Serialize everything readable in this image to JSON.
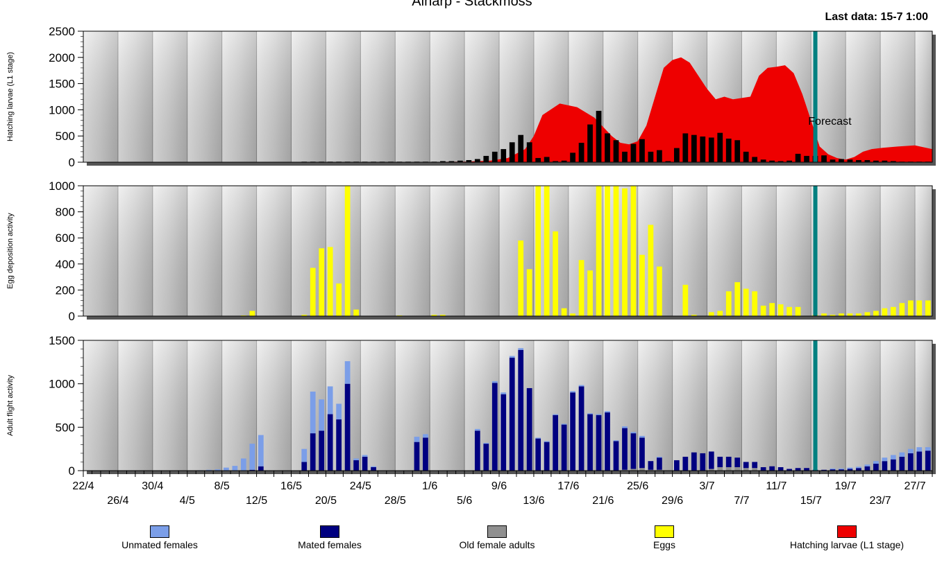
{
  "title": "Alnarp - Stackmoss",
  "last_data": "Last data: 15-7 1:00",
  "forecast_label": "Forecast",
  "colors": {
    "unmated": "#7b9ee8",
    "mated": "#000080",
    "old": "#909090",
    "eggs": "#ffff00",
    "larvae": "#ee0000",
    "forecast_line": "#008080",
    "larvae_bars": "#000000"
  },
  "legend": [
    {
      "label": "Unmated females",
      "color": "#7b9ee8"
    },
    {
      "label": "Mated females",
      "color": "#000080"
    },
    {
      "label": "Old female adults",
      "color": "#909090"
    },
    {
      "label": "Eggs",
      "color": "#ffff00"
    },
    {
      "label": "Hatching larvae (L1 stage)",
      "color": "#ee0000"
    }
  ],
  "chart_data": [
    {
      "type": "area",
      "panel": "top",
      "ylabel": "Hatching larvae (L1 stage)",
      "ylim": [
        0,
        2500
      ],
      "yticks": [
        0,
        500,
        1000,
        1500,
        2000,
        2500
      ],
      "x_start": "22/4",
      "day_count": 98,
      "forecast_day": 84,
      "series": [
        {
          "name": "Hatching larvae (L1 stage)",
          "kind": "area",
          "x_days": [
            0,
            36,
            40,
            44,
            47,
            49,
            51,
            52,
            53,
            55,
            57,
            59,
            61,
            62,
            63,
            64,
            65,
            67,
            68,
            69,
            70,
            72,
            73,
            74,
            75,
            77,
            78,
            79,
            80,
            81,
            82,
            83,
            84,
            85,
            86,
            87,
            88,
            89,
            90,
            91,
            92,
            94,
            96,
            98
          ],
          "values": [
            0,
            0,
            5,
            10,
            30,
            80,
            250,
            500,
            900,
            1120,
            1050,
            850,
            500,
            370,
            340,
            400,
            700,
            1800,
            1950,
            2000,
            1900,
            1400,
            1200,
            1250,
            1200,
            1250,
            1650,
            1800,
            1820,
            1850,
            1700,
            1300,
            800,
            300,
            150,
            80,
            50,
            100,
            200,
            250,
            270,
            300,
            320,
            250
          ]
        },
        {
          "name": "Hatching larvae daily",
          "kind": "bars",
          "x_days": [
            25,
            26,
            27,
            28,
            29,
            30,
            31,
            32,
            33,
            34,
            35,
            36,
            37,
            38,
            39,
            40,
            41,
            42,
            43,
            44,
            45,
            46,
            47,
            48,
            49,
            50,
            51,
            52,
            53,
            54,
            55,
            56,
            57,
            58,
            59,
            60,
            61,
            62,
            63,
            64,
            65,
            66,
            67,
            68,
            69,
            70,
            71,
            72,
            73,
            74,
            75,
            76,
            77,
            78,
            79,
            80,
            81,
            82,
            83,
            84,
            85,
            86,
            87,
            88,
            89,
            90,
            91,
            92,
            93,
            94,
            95,
            96,
            97
          ],
          "values": [
            10,
            10,
            10,
            10,
            10,
            10,
            10,
            10,
            10,
            10,
            10,
            10,
            10,
            10,
            10,
            10,
            20,
            20,
            30,
            40,
            60,
            120,
            200,
            250,
            380,
            520,
            380,
            80,
            100,
            20,
            30,
            180,
            370,
            720,
            980,
            550,
            420,
            200,
            350,
            440,
            200,
            230,
            20,
            270,
            550,
            520,
            490,
            470,
            560,
            450,
            420,
            200,
            100,
            50,
            30,
            20,
            30,
            160,
            120,
            120,
            130,
            50,
            60,
            50,
            40,
            40,
            30,
            30,
            20,
            10,
            10,
            10,
            10
          ]
        }
      ]
    },
    {
      "type": "bar",
      "panel": "middle",
      "ylabel": "Egg deposition activity",
      "ylim": [
        0,
        1000
      ],
      "yticks": [
        0,
        200,
        400,
        600,
        800,
        1000
      ],
      "series": [
        {
          "name": "Eggs",
          "x_days": [
            18,
            19,
            25,
            26,
            27,
            28,
            29,
            30,
            31,
            36,
            40,
            41,
            50,
            51,
            52,
            53,
            54,
            55,
            56,
            57,
            58,
            59,
            60,
            61,
            62,
            63,
            64,
            65,
            66,
            69,
            70,
            72,
            73,
            74,
            75,
            76,
            77,
            78,
            79,
            80,
            81,
            82,
            84,
            85,
            86,
            87,
            88,
            89,
            90,
            91,
            92,
            93,
            94,
            95,
            96,
            97
          ],
          "values": [
            5,
            40,
            10,
            370,
            520,
            530,
            250,
            1000,
            50,
            5,
            10,
            10,
            580,
            360,
            1000,
            1000,
            650,
            60,
            20,
            430,
            350,
            1000,
            1000,
            1000,
            980,
            1000,
            470,
            700,
            380,
            240,
            10,
            30,
            40,
            190,
            260,
            210,
            190,
            80,
            100,
            90,
            70,
            70,
            10,
            20,
            10,
            20,
            20,
            20,
            30,
            40,
            60,
            70,
            100,
            120,
            120,
            120
          ]
        }
      ]
    },
    {
      "type": "bar",
      "panel": "bottom",
      "ylabel": "Adult flight activity",
      "ylim": [
        0,
        1500
      ],
      "yticks": [
        0,
        500,
        1000,
        1500
      ],
      "stacked": true,
      "series_names": [
        "Mated females",
        "Unmated females",
        "Old female adults"
      ],
      "x_days": [
        13,
        14,
        15,
        16,
        17,
        18,
        19,
        20,
        25,
        26,
        27,
        28,
        29,
        30,
        31,
        32,
        33,
        34,
        38,
        39,
        45,
        46,
        47,
        48,
        49,
        50,
        51,
        52,
        53,
        54,
        55,
        56,
        57,
        58,
        59,
        60,
        61,
        62,
        63,
        64,
        65,
        66,
        68,
        69,
        70,
        71,
        72,
        73,
        74,
        75,
        76,
        77,
        78,
        79,
        80,
        81,
        82,
        83,
        84,
        85,
        86,
        87,
        88,
        89,
        90,
        91,
        92,
        93,
        94,
        95,
        96,
        97
      ],
      "mated": [
        0,
        0,
        0,
        0,
        0,
        0,
        10,
        50,
        100,
        430,
        460,
        650,
        590,
        1000,
        120,
        160,
        40,
        0,
        330,
        380,
        460,
        310,
        1010,
        880,
        1300,
        1390,
        950,
        370,
        330,
        640,
        530,
        900,
        970,
        650,
        640,
        670,
        340,
        480,
        410,
        350,
        100,
        140,
        120,
        160,
        210,
        200,
        200,
        120,
        120,
        110,
        70,
        70,
        40,
        50,
        40,
        20,
        30,
        30,
        10,
        10,
        15,
        15,
        20,
        30,
        50,
        80,
        110,
        130,
        160,
        200,
        220,
        230
      ],
      "unmated": [
        5,
        10,
        15,
        35,
        55,
        140,
        300,
        360,
        150,
        480,
        360,
        320,
        180,
        260,
        20,
        20,
        10,
        0,
        60,
        40,
        20,
        10,
        20,
        20,
        20,
        20,
        0,
        10,
        10,
        10,
        10,
        15,
        15,
        10,
        10,
        15,
        10,
        20,
        15,
        20,
        0,
        10,
        0,
        0,
        0,
        0,
        0,
        0,
        0,
        0,
        0,
        0,
        0,
        0,
        0,
        0,
        0,
        0,
        0,
        0,
        10,
        10,
        15,
        15,
        20,
        30,
        40,
        50,
        50,
        50,
        50,
        40
      ],
      "old": [
        0,
        0,
        0,
        0,
        0,
        0,
        0,
        0,
        0,
        0,
        0,
        0,
        0,
        0,
        0,
        0,
        0,
        0,
        0,
        0,
        0,
        0,
        0,
        0,
        0,
        0,
        0,
        0,
        0,
        0,
        0,
        0,
        0,
        0,
        0,
        0,
        0,
        10,
        20,
        30,
        10,
        10,
        0,
        0,
        0,
        0,
        20,
        40,
        40,
        40,
        30,
        30,
        0,
        0,
        0,
        0,
        0,
        0,
        0,
        0,
        0,
        0,
        0,
        0,
        0,
        0,
        0,
        0,
        0,
        0,
        0,
        0
      ]
    }
  ],
  "x_ticks_row1": [
    "22/4",
    "30/4",
    "8/5",
    "16/5",
    "24/5",
    "1/6",
    "9/6",
    "17/6",
    "25/6",
    "3/7",
    "11/7",
    "19/7",
    "27/7"
  ],
  "x_ticks_row2": [
    "26/4",
    "4/5",
    "12/5",
    "20/5",
    "28/5",
    "5/6",
    "13/6",
    "21/6",
    "29/6",
    "7/7",
    "15/7",
    "23/7"
  ]
}
